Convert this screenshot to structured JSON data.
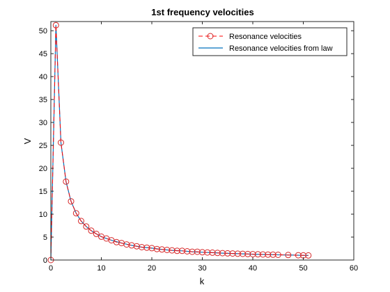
{
  "chart_data": {
    "type": "line",
    "title": "1st frequency velocities",
    "xlabel": "k",
    "ylabel": "V",
    "xlim": [
      0,
      60
    ],
    "ylim": [
      0,
      52
    ],
    "xticks": [
      0,
      10,
      20,
      30,
      40,
      50,
      60
    ],
    "yticks": [
      0,
      5,
      10,
      15,
      20,
      25,
      30,
      35,
      40,
      45,
      50
    ],
    "grid": false,
    "legend_position": "top-right",
    "series": [
      {
        "name": "Resonance velocities",
        "style": "dashed-circle-markers",
        "color": "#ff0000",
        "marker_color": "#d62728",
        "x": [
          0,
          1,
          2,
          3,
          4,
          5,
          6,
          7,
          8,
          9,
          10,
          11,
          12,
          13,
          14,
          15,
          16,
          17,
          18,
          19,
          20,
          21,
          22,
          23,
          24,
          25,
          26,
          27,
          28,
          29,
          30,
          31,
          32,
          33,
          34,
          35,
          36,
          37,
          38,
          39,
          40,
          41,
          42,
          43,
          44,
          45,
          47,
          49,
          50,
          51
        ],
        "y": [
          0,
          51.2,
          25.6,
          17.1,
          12.8,
          10.2,
          8.5,
          7.3,
          6.4,
          5.7,
          5.1,
          4.7,
          4.3,
          3.9,
          3.7,
          3.4,
          3.2,
          3.0,
          2.8,
          2.7,
          2.6,
          2.4,
          2.3,
          2.2,
          2.1,
          2.0,
          2.0,
          1.9,
          1.8,
          1.8,
          1.7,
          1.65,
          1.6,
          1.55,
          1.5,
          1.46,
          1.42,
          1.38,
          1.35,
          1.31,
          1.28,
          1.25,
          1.22,
          1.19,
          1.16,
          1.14,
          1.09,
          1.04,
          1.02,
          1.0
        ]
      },
      {
        "name": "Resonance velocities from law",
        "style": "solid",
        "color": "#0072bd",
        "x": [
          0,
          1,
          2,
          3,
          4,
          5,
          6,
          7,
          8,
          9,
          10,
          12,
          14,
          16,
          18,
          20,
          22,
          24,
          26,
          28,
          30,
          32,
          34,
          36,
          38,
          40,
          42,
          44,
          46,
          48,
          50,
          51
        ],
        "y": [
          0,
          51.2,
          25.6,
          17.1,
          12.8,
          10.2,
          8.5,
          7.3,
          6.4,
          5.7,
          5.1,
          4.3,
          3.7,
          3.2,
          2.8,
          2.6,
          2.3,
          2.1,
          2.0,
          1.8,
          1.7,
          1.6,
          1.5,
          1.42,
          1.35,
          1.28,
          1.22,
          1.16,
          1.11,
          1.07,
          1.02,
          1.0
        ]
      }
    ]
  }
}
